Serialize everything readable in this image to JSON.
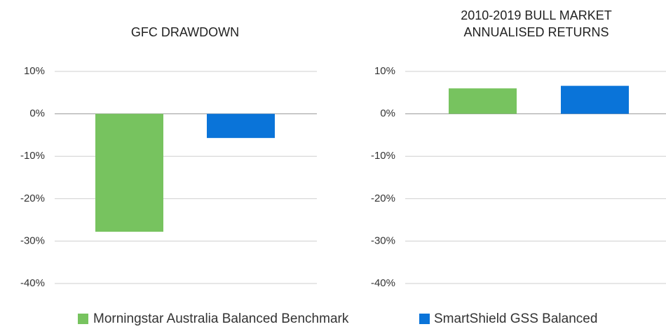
{
  "chart_data": [
    {
      "type": "bar",
      "title": [
        "GFC DRAWDOWN"
      ],
      "values": [
        -27.8,
        -5.7
      ],
      "ylim": [
        -40,
        10
      ],
      "yticks": [
        {
          "value": -40,
          "label": "-40%"
        },
        {
          "value": -30,
          "label": "-30%"
        },
        {
          "value": -20,
          "label": "-20%"
        },
        {
          "value": -10,
          "label": "-10%"
        },
        {
          "value": 0,
          "label": "0%"
        },
        {
          "value": 10,
          "label": "10%"
        }
      ],
      "grid": true
    },
    {
      "type": "bar",
      "title": [
        "2010-2019 BULL MARKET",
        "ANNUALISED RETURNS"
      ],
      "values": [
        6.0,
        6.6
      ],
      "ylim": [
        -40,
        10
      ],
      "yticks": [
        {
          "value": -40,
          "label": "-40%"
        },
        {
          "value": -30,
          "label": "-30%"
        },
        {
          "value": -20,
          "label": "-20%"
        },
        {
          "value": -10,
          "label": "-10%"
        },
        {
          "value": 0,
          "label": "0%"
        },
        {
          "value": 10,
          "label": "10%"
        }
      ],
      "grid": true
    }
  ],
  "legend": {
    "series": [
      {
        "name": "Morningstar Australia Balanced Benchmark",
        "color": "#77c35f"
      },
      {
        "name": "SmartShield GSS Balanced",
        "color": "#0a74d9"
      }
    ]
  }
}
